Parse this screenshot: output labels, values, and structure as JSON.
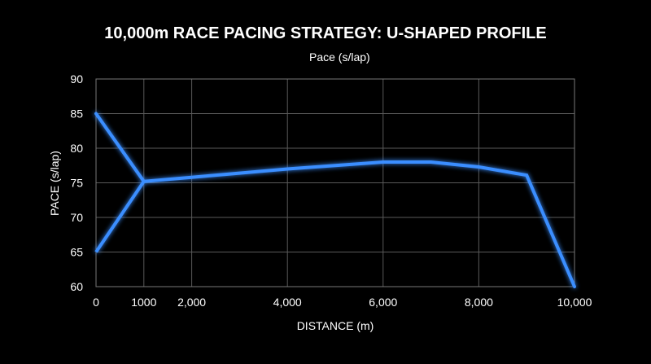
{
  "chart_data": {
    "type": "line",
    "title": "10,000m RACE PACING STRATEGY: U-SHAPED PROFILE",
    "xlabel": "DISTANCE (m)",
    "ylabel": "PACE (s/lap)",
    "xlim": [
      0,
      10000
    ],
    "ylim": [
      60,
      90
    ],
    "x_ticks": [
      0,
      1000,
      2000,
      4000,
      6000,
      8000,
      10000
    ],
    "x_tick_labels": [
      "0",
      "1000",
      "2,000",
      "4,000",
      "6,000",
      "8,000",
      "10,000"
    ],
    "y_ticks": [
      60,
      65,
      70,
      75,
      80,
      85,
      90
    ],
    "y_tick_labels": [
      "60",
      "65",
      "70",
      "75",
      "80",
      "85",
      "90"
    ],
    "grid": true,
    "legend_position": "top-center",
    "series": [
      {
        "name": "Pace (s/lap)",
        "color": "#3a8eff",
        "points": [
          [
            0,
            85
          ],
          [
            1000,
            75.2
          ],
          [
            0,
            65
          ],
          [
            1000,
            75.2
          ],
          [
            2000,
            75.8
          ],
          [
            3000,
            76.4
          ],
          [
            4000,
            77
          ],
          [
            5000,
            77.5
          ],
          [
            6000,
            78
          ],
          [
            7000,
            78
          ],
          [
            8000,
            77.3
          ],
          [
            9000,
            76.1
          ],
          [
            10000,
            60
          ]
        ]
      }
    ]
  }
}
